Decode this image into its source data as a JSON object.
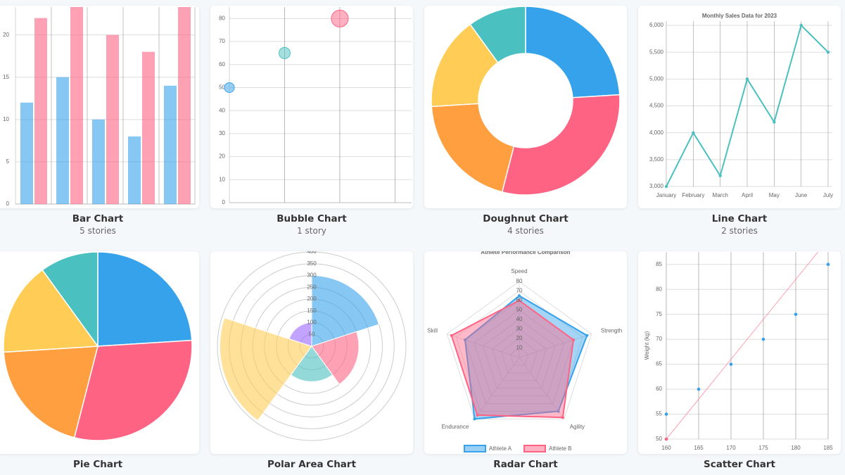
{
  "cards": [
    {
      "title": "Bar Chart",
      "subtitle": "5 stories",
      "chart": {
        "type": "bar",
        "categories": [
          null,
          null,
          null,
          null,
          null
        ],
        "series": [
          {
            "color": "#36a2eb",
            "values": [
              12,
              15,
              10,
              8,
              14
            ]
          },
          {
            "color": "#ff6384",
            "values": [
              22,
              24,
              20,
              18,
              24
            ]
          }
        ],
        "ylim": [
          0,
          23.3
        ],
        "yticks": [
          0,
          5,
          10,
          15,
          20
        ],
        "grid": true
      }
    },
    {
      "title": "Bubble Chart",
      "subtitle": "1 story",
      "chart": {
        "type": "bubble",
        "x": [
          1,
          2,
          3
        ],
        "values": [
          50,
          65,
          80
        ],
        "sizes": [
          7,
          8,
          12
        ],
        "colors": [
          "#36a2eb",
          "#4bc0c0",
          "#ff6384"
        ],
        "xlim": [
          1,
          4.3
        ],
        "xticks": [
          1,
          2,
          3,
          4
        ],
        "ylim": [
          0,
          85
        ],
        "yticks": [
          0,
          10,
          20,
          30,
          40,
          50,
          60,
          70,
          80
        ],
        "grid": true
      }
    },
    {
      "title": "Doughnut Chart",
      "subtitle": "4 stories",
      "chart": {
        "type": "doughnut",
        "values": [
          24,
          30,
          20,
          16,
          10
        ],
        "colors": [
          "#36a2eb",
          "#ff6384",
          "#ff9f40",
          "#ffcd56",
          "#4bc0c0"
        ]
      }
    },
    {
      "title": "Line Chart",
      "subtitle": "2 stories",
      "chart": {
        "type": "line",
        "title": "Monthly Sales Data for 2023",
        "categories": [
          "January",
          "February",
          "March",
          "April",
          "May",
          "June",
          "July"
        ],
        "values": [
          3000,
          4000,
          3200,
          5000,
          4200,
          6000,
          5500
        ],
        "color": "#4bc0c0",
        "ylim": [
          3000,
          6000
        ],
        "yticks": [
          {
            "value": 3000,
            "label": "3,000"
          },
          {
            "value": 3500,
            "label": "3,500"
          },
          {
            "value": 4000,
            "label": "4,000"
          },
          {
            "value": 4500,
            "label": "4,500"
          },
          {
            "value": 5000,
            "label": "5,000"
          },
          {
            "value": 5500,
            "label": "5,500"
          },
          {
            "value": 6000,
            "label": "6,000"
          }
        ],
        "grid": true
      }
    },
    {
      "title": "Pie Chart",
      "chart": {
        "type": "pie",
        "values": [
          24,
          30,
          20,
          16,
          10
        ],
        "colors": [
          "#36a2eb",
          "#ff6384",
          "#ff9f40",
          "#ffcd56",
          "#4bc0c0"
        ]
      }
    },
    {
      "title": "Polar Area Chart",
      "chart": {
        "type": "polarArea",
        "values": [
          300,
          200,
          150,
          390,
          100
        ],
        "colors": [
          "#36a2eb",
          "#ff6384",
          "#4bc0c0",
          "#ffcd56",
          "#9966ff"
        ],
        "ylim": [
          0,
          400
        ],
        "yticks": [
          50,
          100,
          150,
          200,
          250,
          300,
          350,
          400
        ]
      }
    },
    {
      "title": "Radar Chart",
      "chart": {
        "type": "radar",
        "title": "Athlete Performance Comparison",
        "categories": [
          "Speed",
          "Strength",
          "Agility",
          "Endurance",
          "Skill"
        ],
        "series": [
          {
            "name": "Athlete A",
            "color": "#36a2eb",
            "values": [
              65,
              75,
              70,
              80,
              60
            ]
          },
          {
            "name": "Athlete B",
            "color": "#ff6384",
            "values": [
              60,
              60,
              78,
              75,
              75
            ]
          }
        ],
        "ylim": [
          0,
          80
        ],
        "yticks": [
          10,
          20,
          30,
          40,
          50,
          60,
          70,
          80
        ],
        "legend": "bottom"
      }
    },
    {
      "title": "Scatter Chart",
      "chart": {
        "type": "scatter",
        "y_label": "Weight (kg)",
        "series": [
          {
            "color": "#36a2eb",
            "mode": "points",
            "x": [
              160,
              165,
              170,
              175,
              180,
              185
            ],
            "values": [
              55,
              60,
              65,
              70,
              75,
              85
            ]
          },
          {
            "color": "#ff6384",
            "mode": "line",
            "x": [
              160,
              185
            ],
            "values": [
              50,
              90
            ]
          }
        ],
        "xlim": [
          160,
          185
        ],
        "xticks": [
          160,
          165,
          170,
          175,
          180,
          185
        ],
        "ylim": [
          50,
          87.5
        ],
        "yticks": [
          50,
          55,
          60,
          65,
          70,
          75,
          80,
          85
        ],
        "grid": true
      }
    }
  ]
}
